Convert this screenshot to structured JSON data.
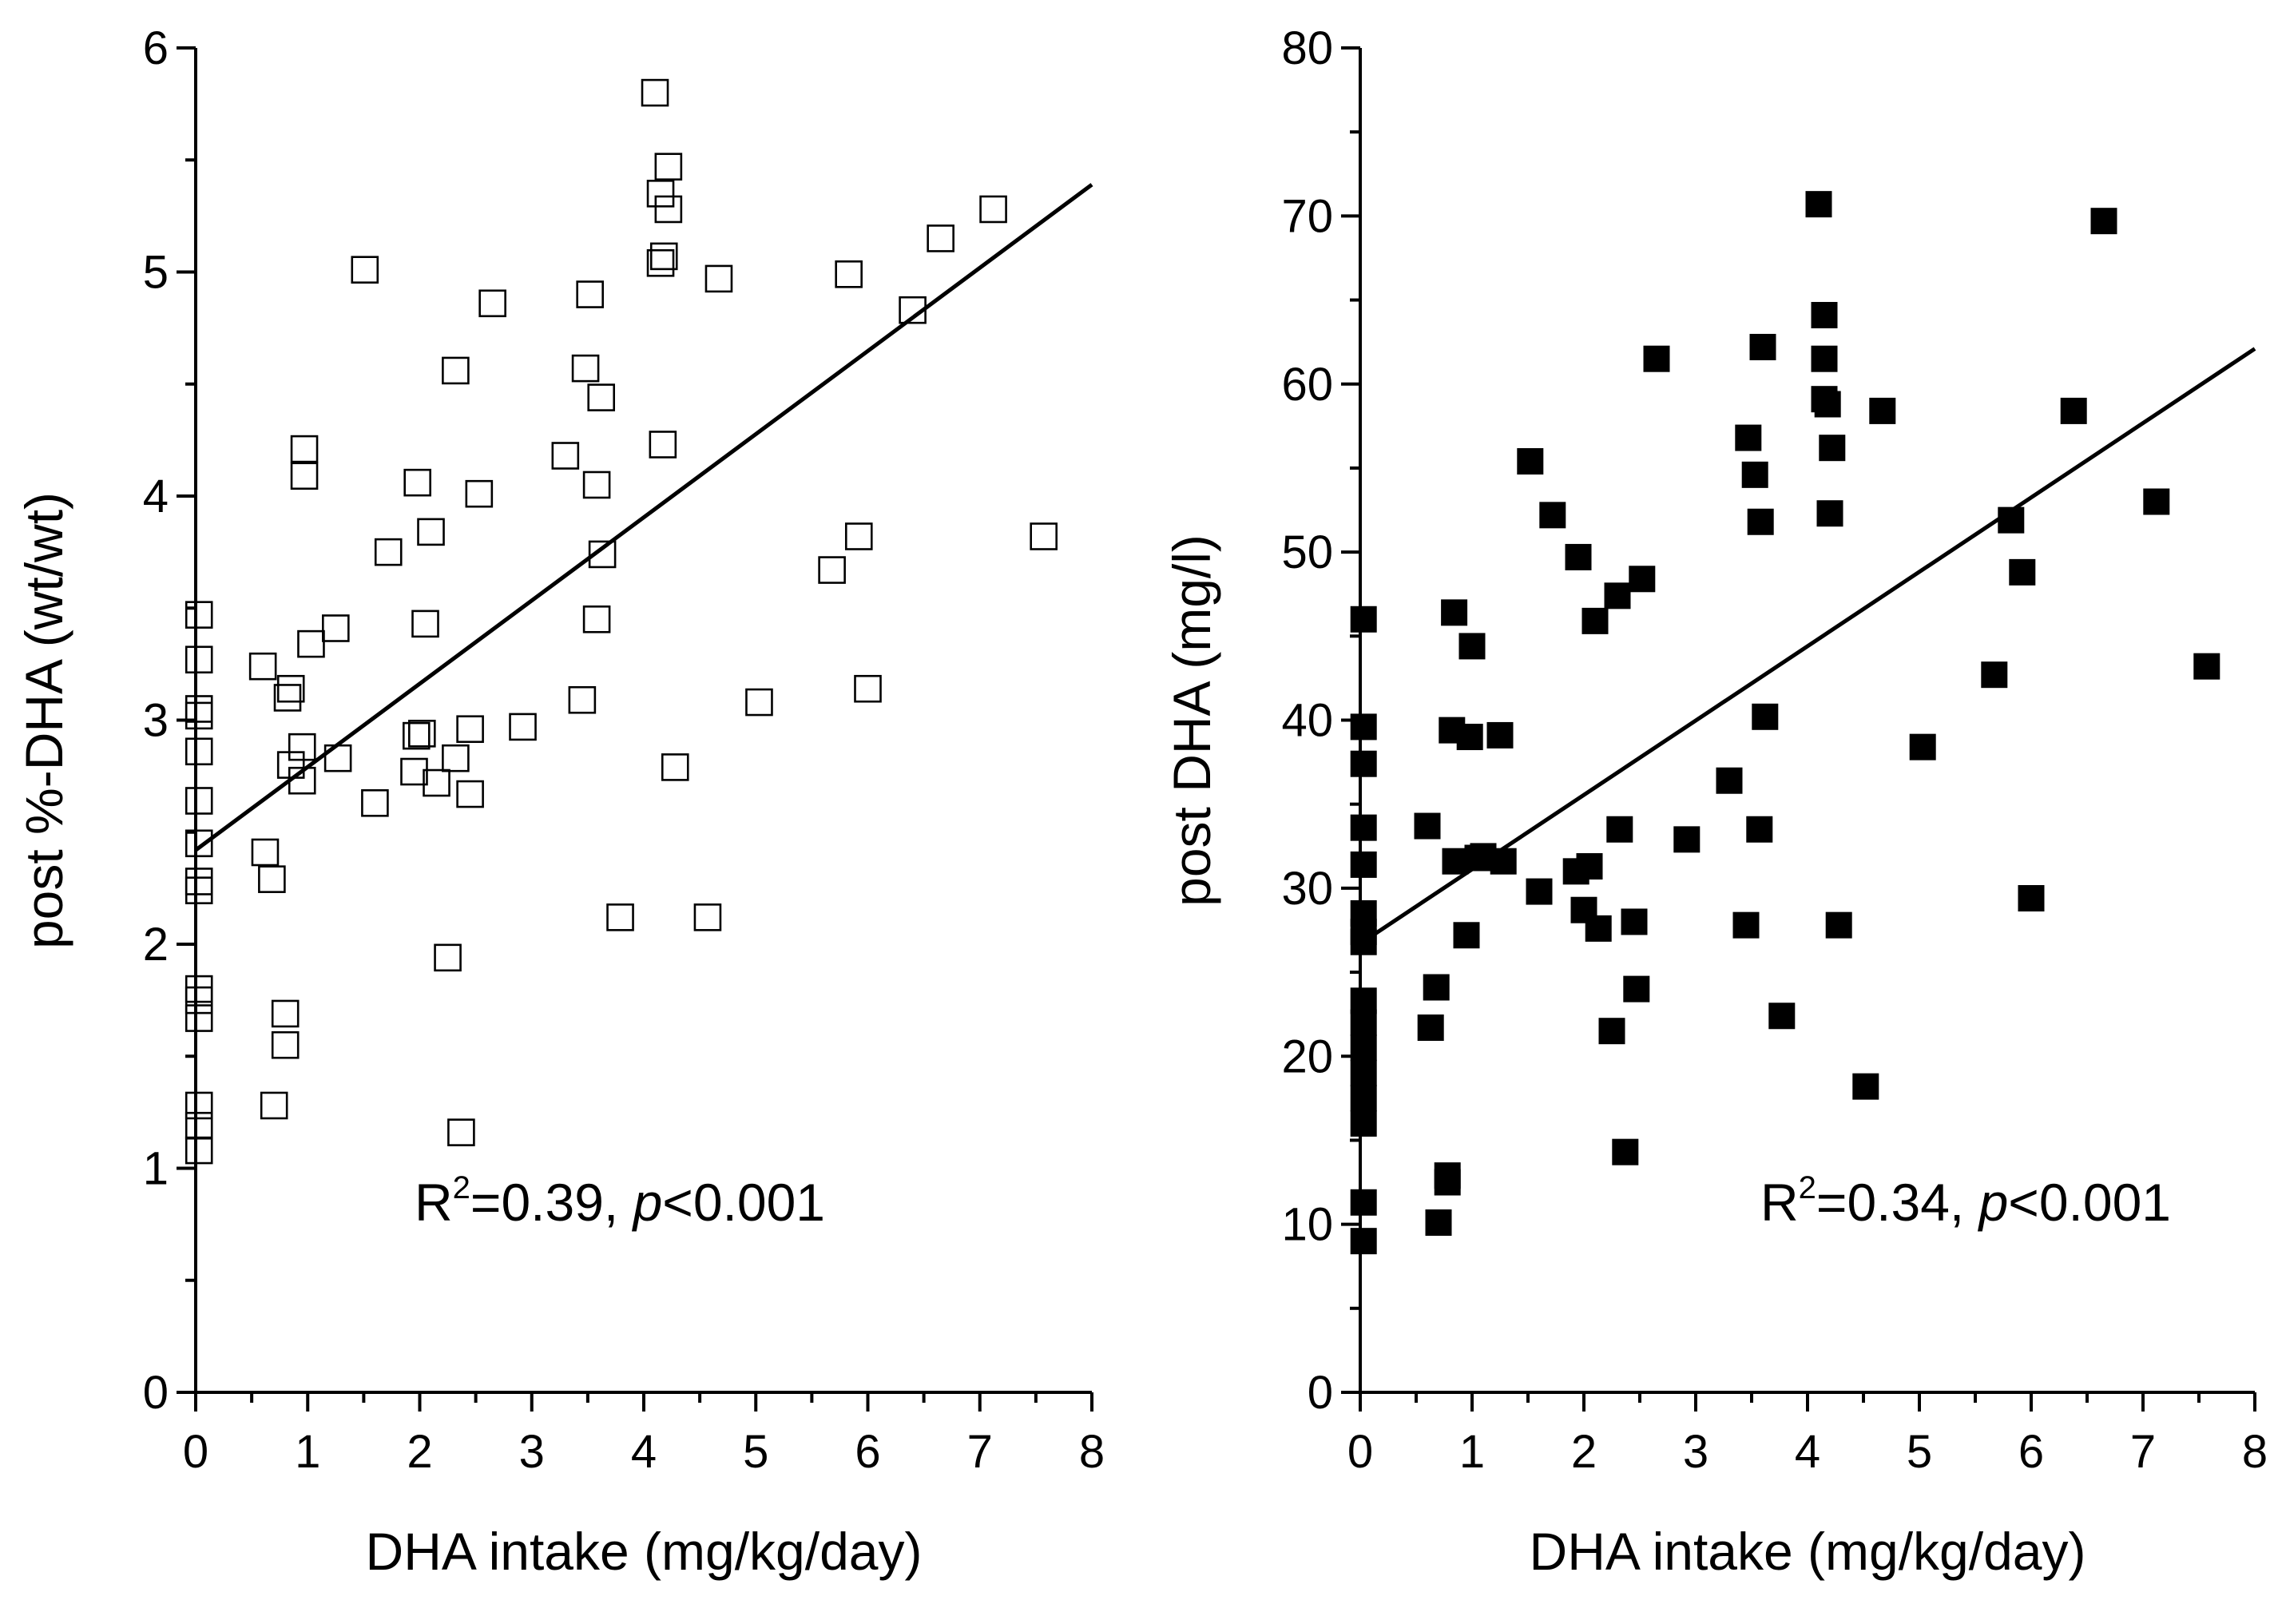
{
  "chart_data": [
    {
      "type": "scatter",
      "title": "",
      "xlabel": "DHA intake (mg/kg/day)",
      "ylabel": "post %-DHA (wt/wt)",
      "xlim": [
        0,
        8
      ],
      "ylim": [
        0,
        6
      ],
      "xticks": [
        "0",
        "1",
        "2",
        "3",
        "4",
        "5",
        "6",
        "7",
        "8"
      ],
      "yticks": [
        "0",
        "1",
        "2",
        "3",
        "4",
        "5",
        "6"
      ],
      "marker": "open-square",
      "marker_color": "#000000",
      "stat": {
        "r2_prefix": "R",
        "r2_sup": "2",
        "r2_value": "=0.39, ",
        "p_italic": "p",
        "p_value": "<0.001"
      },
      "fit_line": {
        "x": [
          0,
          8
        ],
        "y": [
          2.42,
          5.39
        ]
      },
      "points": [
        [
          0.03,
          3.47
        ],
        [
          0.03,
          3.27
        ],
        [
          0.03,
          3.05
        ],
        [
          0.03,
          3.02
        ],
        [
          0.03,
          2.86
        ],
        [
          0.03,
          2.64
        ],
        [
          0.03,
          2.45
        ],
        [
          0.03,
          2.28
        ],
        [
          0.03,
          2.24
        ],
        [
          0.03,
          1.8
        ],
        [
          0.03,
          1.75
        ],
        [
          0.03,
          1.67
        ],
        [
          0.03,
          1.28
        ],
        [
          0.03,
          1.19
        ],
        [
          0.03,
          1.08
        ],
        [
          0.6,
          3.24
        ],
        [
          0.62,
          2.41
        ],
        [
          0.68,
          2.29
        ],
        [
          0.7,
          1.28
        ],
        [
          0.8,
          1.69
        ],
        [
          0.8,
          1.55
        ],
        [
          0.82,
          3.1
        ],
        [
          0.85,
          3.14
        ],
        [
          0.85,
          2.8
        ],
        [
          0.95,
          2.88
        ],
        [
          0.95,
          2.73
        ],
        [
          0.97,
          4.21
        ],
        [
          0.97,
          4.09
        ],
        [
          1.03,
          3.34
        ],
        [
          1.25,
          3.41
        ],
        [
          1.27,
          2.83
        ],
        [
          1.51,
          5.01
        ],
        [
          1.6,
          2.63
        ],
        [
          1.72,
          3.75
        ],
        [
          1.95,
          2.77
        ],
        [
          1.97,
          2.93
        ],
        [
          1.98,
          4.06
        ],
        [
          2.02,
          2.94
        ],
        [
          2.05,
          3.43
        ],
        [
          2.1,
          3.84
        ],
        [
          2.15,
          2.72
        ],
        [
          2.25,
          1.94
        ],
        [
          2.32,
          4.56
        ],
        [
          2.32,
          2.83
        ],
        [
          2.37,
          1.16
        ],
        [
          2.45,
          2.96
        ],
        [
          2.45,
          2.67
        ],
        [
          2.53,
          4.01
        ],
        [
          2.65,
          4.86
        ],
        [
          2.92,
          2.97
        ],
        [
          3.3,
          4.18
        ],
        [
          3.45,
          3.09
        ],
        [
          3.48,
          4.57
        ],
        [
          3.52,
          4.9
        ],
        [
          3.58,
          4.05
        ],
        [
          3.58,
          3.45
        ],
        [
          3.62,
          4.44
        ],
        [
          3.63,
          3.74
        ],
        [
          3.79,
          2.12
        ],
        [
          4.1,
          5.8
        ],
        [
          4.15,
          5.35
        ],
        [
          4.15,
          5.04
        ],
        [
          4.17,
          4.23
        ],
        [
          4.18,
          5.07
        ],
        [
          4.22,
          5.47
        ],
        [
          4.22,
          5.28
        ],
        [
          4.28,
          2.79
        ],
        [
          4.57,
          2.12
        ],
        [
          4.67,
          4.97
        ],
        [
          5.03,
          3.08
        ],
        [
          5.68,
          3.67
        ],
        [
          5.83,
          4.99
        ],
        [
          5.92,
          3.82
        ],
        [
          6.0,
          3.14
        ],
        [
          6.4,
          4.83
        ],
        [
          6.65,
          5.15
        ],
        [
          7.12,
          5.28
        ],
        [
          7.57,
          3.82
        ]
      ]
    },
    {
      "type": "scatter",
      "title": "",
      "xlabel": "DHA intake (mg/kg/day)",
      "ylabel": "post DHA (mg/l)",
      "xlim": [
        0,
        8
      ],
      "ylim": [
        0,
        80
      ],
      "xticks": [
        "0",
        "1",
        "2",
        "3",
        "4",
        "5",
        "6",
        "7",
        "8"
      ],
      "yticks": [
        "0",
        "10",
        "20",
        "30",
        "40",
        "50",
        "60",
        "70",
        "80"
      ],
      "marker": "filled-square",
      "marker_color": "#000000",
      "stat": {
        "r2_prefix": "R",
        "r2_sup": "2",
        "r2_value": "=0.34, ",
        "p_italic": "p",
        "p_value": "<0.001"
      },
      "fit_line": {
        "x": [
          0,
          8
        ],
        "y": [
          26.7,
          62.1
        ]
      },
      "points": [
        [
          0.03,
          46.0
        ],
        [
          0.03,
          39.6
        ],
        [
          0.03,
          37.4
        ],
        [
          0.03,
          33.6
        ],
        [
          0.03,
          31.4
        ],
        [
          0.03,
          28.5
        ],
        [
          0.03,
          27.4
        ],
        [
          0.03,
          26.8
        ],
        [
          0.03,
          23.3
        ],
        [
          0.03,
          22.0
        ],
        [
          0.03,
          20.5
        ],
        [
          0.03,
          19.0
        ],
        [
          0.03,
          17.5
        ],
        [
          0.03,
          16.0
        ],
        [
          0.03,
          11.3
        ],
        [
          0.03,
          9.0
        ],
        [
          0.6,
          33.7
        ],
        [
          0.63,
          21.7
        ],
        [
          0.68,
          24.1
        ],
        [
          0.7,
          10.1
        ],
        [
          0.78,
          12.5
        ],
        [
          0.78,
          12.9
        ],
        [
          0.82,
          39.4
        ],
        [
          0.84,
          46.4
        ],
        [
          0.85,
          31.6
        ],
        [
          0.95,
          27.2
        ],
        [
          0.98,
          39.0
        ],
        [
          1.0,
          44.4
        ],
        [
          1.05,
          31.8
        ],
        [
          1.1,
          31.9
        ],
        [
          1.25,
          39.1
        ],
        [
          1.28,
          31.6
        ],
        [
          1.52,
          55.4
        ],
        [
          1.6,
          29.8
        ],
        [
          1.72,
          52.2
        ],
        [
          1.93,
          31.0
        ],
        [
          1.95,
          49.7
        ],
        [
          2.0,
          28.7
        ],
        [
          2.05,
          31.3
        ],
        [
          2.1,
          45.9
        ],
        [
          2.13,
          27.6
        ],
        [
          2.25,
          21.5
        ],
        [
          2.3,
          47.4
        ],
        [
          2.32,
          33.5
        ],
        [
          2.37,
          14.3
        ],
        [
          2.45,
          28.0
        ],
        [
          2.47,
          24.0
        ],
        [
          2.52,
          48.4
        ],
        [
          2.65,
          61.5
        ],
        [
          2.92,
          32.9
        ],
        [
          3.3,
          36.4
        ],
        [
          3.45,
          27.8
        ],
        [
          3.47,
          56.8
        ],
        [
          3.53,
          54.6
        ],
        [
          3.57,
          33.5
        ],
        [
          3.58,
          51.8
        ],
        [
          3.6,
          62.2
        ],
        [
          3.62,
          40.2
        ],
        [
          3.77,
          22.4
        ],
        [
          4.1,
          70.7
        ],
        [
          4.15,
          64.1
        ],
        [
          4.15,
          61.5
        ],
        [
          4.15,
          59.1
        ],
        [
          4.18,
          58.8
        ],
        [
          4.2,
          52.3
        ],
        [
          4.22,
          56.2
        ],
        [
          4.28,
          27.8
        ],
        [
          4.52,
          18.2
        ],
        [
          4.67,
          58.4
        ],
        [
          5.03,
          38.4
        ],
        [
          5.67,
          42.7
        ],
        [
          5.82,
          51.9
        ],
        [
          5.92,
          48.8
        ],
        [
          6.0,
          29.4
        ],
        [
          6.38,
          58.4
        ],
        [
          6.65,
          69.7
        ],
        [
          7.12,
          53.0
        ],
        [
          7.57,
          43.2
        ]
      ]
    }
  ]
}
